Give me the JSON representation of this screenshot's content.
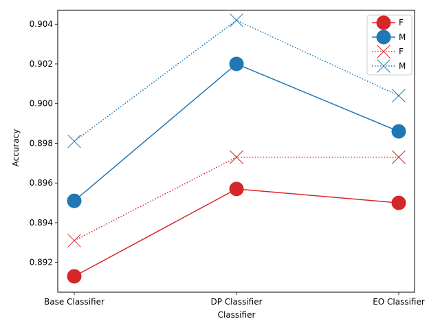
{
  "chart_data": {
    "type": "line",
    "title": "",
    "xlabel": "Classifier",
    "ylabel": "Accuracy",
    "categories": [
      "Base Classifier",
      "DP Classifier",
      "EO Classifier"
    ],
    "ylim": [
      0.8905,
      0.9047
    ],
    "yticks": [
      0.892,
      0.894,
      0.896,
      0.898,
      0.9,
      0.902,
      0.904
    ],
    "ytick_labels": [
      "0.892",
      "0.894",
      "0.896",
      "0.898",
      "0.900",
      "0.902",
      "0.904"
    ],
    "grid": false,
    "legend_position": "top-right",
    "series": [
      {
        "name": "F",
        "values": [
          0.8913,
          0.8957,
          0.895
        ],
        "color": "#d62728",
        "linestyle": "solid",
        "marker": "circle"
      },
      {
        "name": "M",
        "values": [
          0.8951,
          0.902,
          0.8986
        ],
        "color": "#1f77b4",
        "linestyle": "solid",
        "marker": "circle"
      },
      {
        "name": "F",
        "values": [
          0.8931,
          0.8973,
          0.8973
        ],
        "color": "#d62728",
        "linestyle": "dotted",
        "marker": "x"
      },
      {
        "name": "M",
        "values": [
          0.8981,
          0.9042,
          0.9004
        ],
        "color": "#1f77b4",
        "linestyle": "dotted",
        "marker": "x"
      }
    ]
  }
}
